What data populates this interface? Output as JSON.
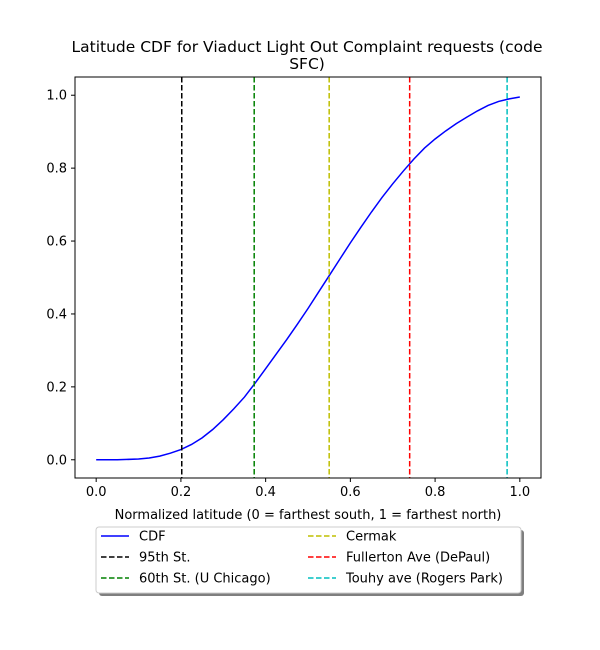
{
  "chart_data": {
    "type": "line",
    "title_line1": "Latitude CDF for Viaduct Light Out Complaint  requests (code",
    "title_line2": "SFC)",
    "xlabel": "Normalized latitude (0 = farthest south, 1 = farthest north)",
    "ylabel": "",
    "xlim": [
      -0.05,
      1.05
    ],
    "ylim": [
      -0.05,
      1.05
    ],
    "xticks": [
      0.0,
      0.2,
      0.4,
      0.6,
      0.8,
      1.0
    ],
    "xtick_labels": [
      "0.0",
      "0.2",
      "0.4",
      "0.6",
      "0.8",
      "1.0"
    ],
    "yticks": [
      0.0,
      0.2,
      0.4,
      0.6,
      0.8,
      1.0
    ],
    "ytick_labels": [
      "0.0",
      "0.2",
      "0.4",
      "0.6",
      "0.8",
      "1.0"
    ],
    "grid": false,
    "legend_placement": "below plot",
    "series": [
      {
        "name": "CDF",
        "color": "#0000ff",
        "style": "solid",
        "x": [
          0.0,
          0.05,
          0.1,
          0.125,
          0.15,
          0.175,
          0.2,
          0.225,
          0.25,
          0.275,
          0.3,
          0.325,
          0.35,
          0.375,
          0.4,
          0.425,
          0.45,
          0.475,
          0.5,
          0.525,
          0.55,
          0.575,
          0.6,
          0.625,
          0.65,
          0.675,
          0.7,
          0.725,
          0.75,
          0.775,
          0.8,
          0.825,
          0.85,
          0.875,
          0.9,
          0.925,
          0.95,
          0.975,
          1.0
        ],
        "y": [
          0.0,
          0.0,
          0.002,
          0.005,
          0.01,
          0.018,
          0.028,
          0.042,
          0.06,
          0.083,
          0.11,
          0.14,
          0.172,
          0.21,
          0.25,
          0.29,
          0.33,
          0.372,
          0.415,
          0.46,
          0.505,
          0.55,
          0.595,
          0.638,
          0.68,
          0.72,
          0.757,
          0.792,
          0.825,
          0.855,
          0.88,
          0.902,
          0.922,
          0.94,
          0.957,
          0.972,
          0.983,
          0.99,
          0.995
        ]
      }
    ],
    "vlines": [
      {
        "name": "95th St.",
        "x": 0.202,
        "color": "#000000"
      },
      {
        "name": "60th St. (U Chicago)",
        "x": 0.373,
        "color": "#008000"
      },
      {
        "name": "Cermak",
        "x": 0.55,
        "color": "#bfbf00"
      },
      {
        "name": "Fullerton Ave (DePaul)",
        "x": 0.74,
        "color": "#ff0000"
      },
      {
        "name": "Touhy ave (Rogers Park)",
        "x": 0.97,
        "color": "#00bfbf"
      }
    ]
  }
}
